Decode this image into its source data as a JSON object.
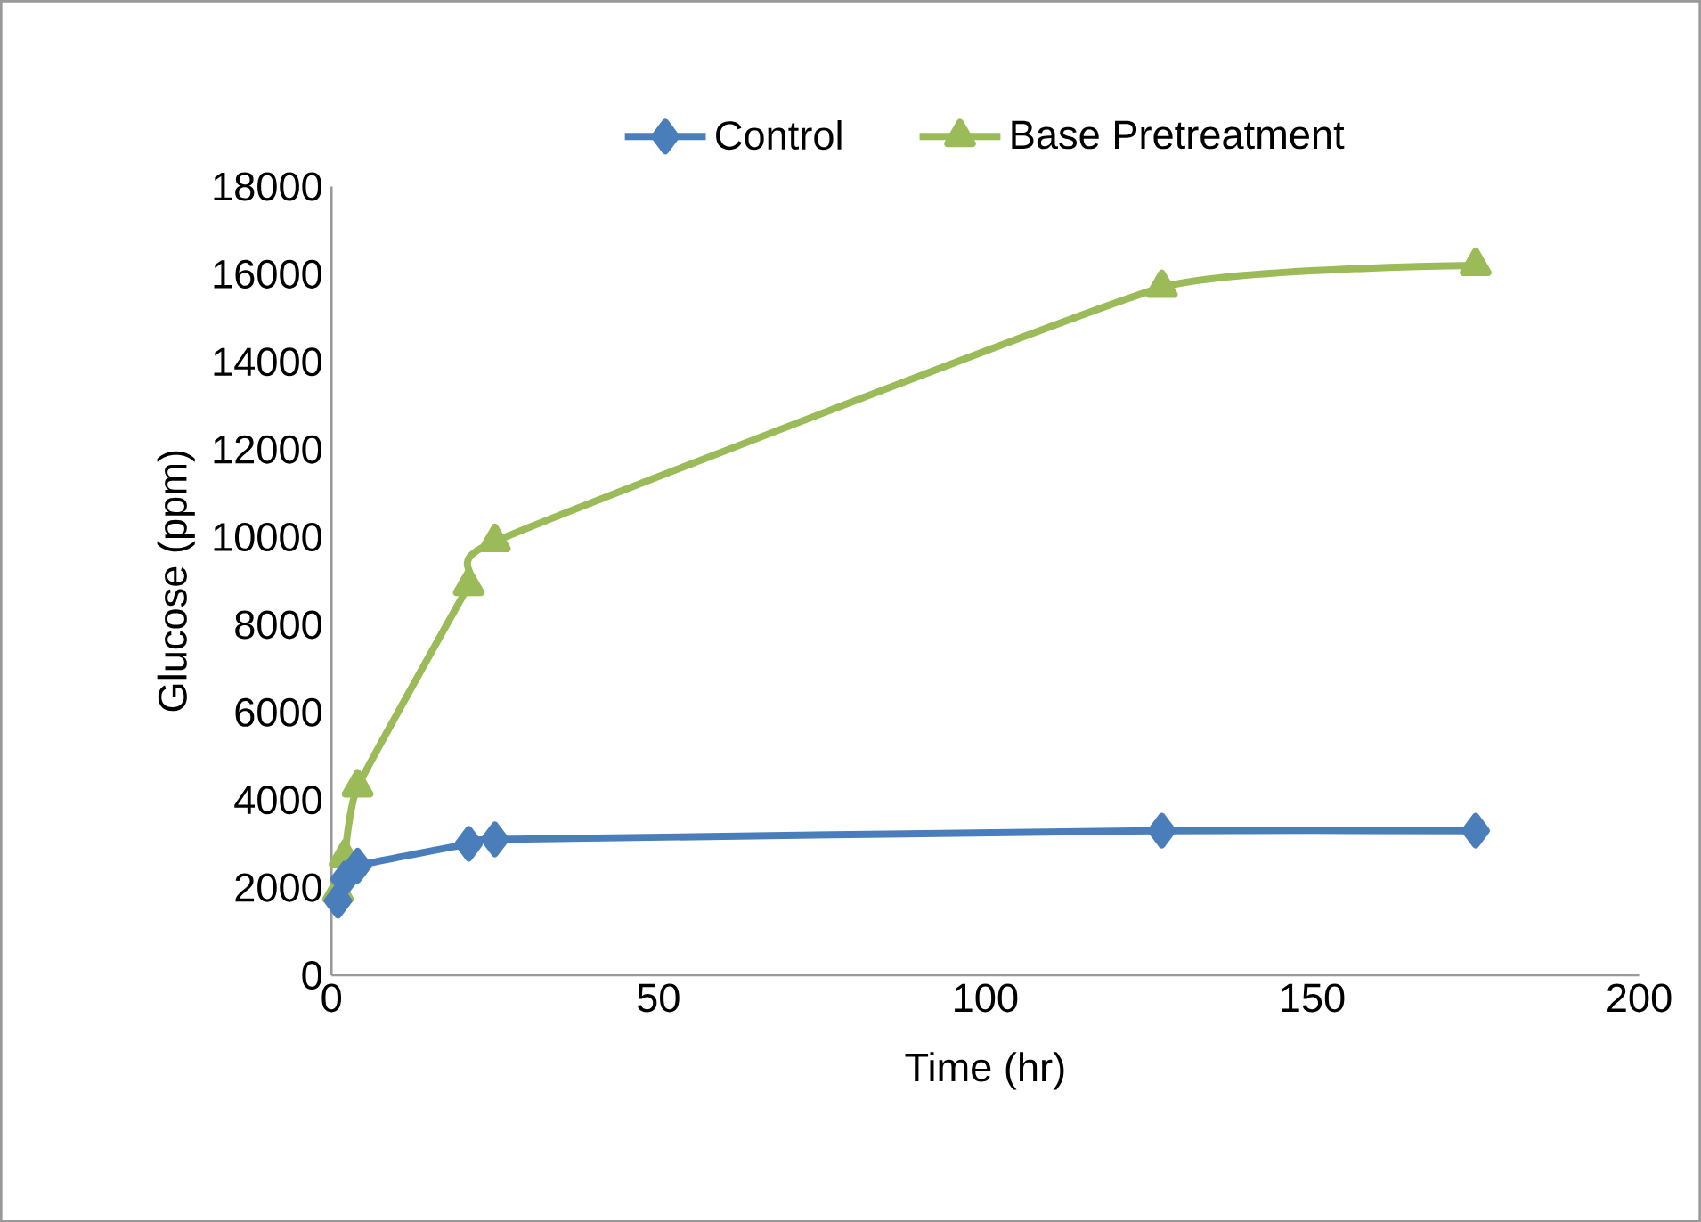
{
  "chart_data": {
    "type": "line",
    "xlabel": "Time (hr)",
    "ylabel": "Glucose (ppm)",
    "xlim": [
      0,
      200
    ],
    "xticks": [
      0,
      50,
      100,
      150,
      200
    ],
    "ylim": [
      0,
      18000
    ],
    "yticks": [
      0,
      2000,
      4000,
      6000,
      8000,
      10000,
      12000,
      14000,
      16000,
      18000
    ],
    "grid": false,
    "legend": "top",
    "series": [
      {
        "name": "Control",
        "color": "#4a7ebb",
        "marker": "diamond",
        "x": [
          1,
          2,
          4,
          21,
          25,
          127,
          175
        ],
        "values": [
          1700,
          2200,
          2500,
          3000,
          3100,
          3300,
          3300
        ]
      },
      {
        "name": "Base Pretreatment",
        "color": "#9bbb59",
        "marker": "triangle",
        "x": [
          1,
          2,
          4,
          21,
          25,
          127,
          175
        ],
        "values": [
          1900,
          2700,
          4300,
          8900,
          9900,
          15700,
          16200
        ]
      }
    ]
  }
}
